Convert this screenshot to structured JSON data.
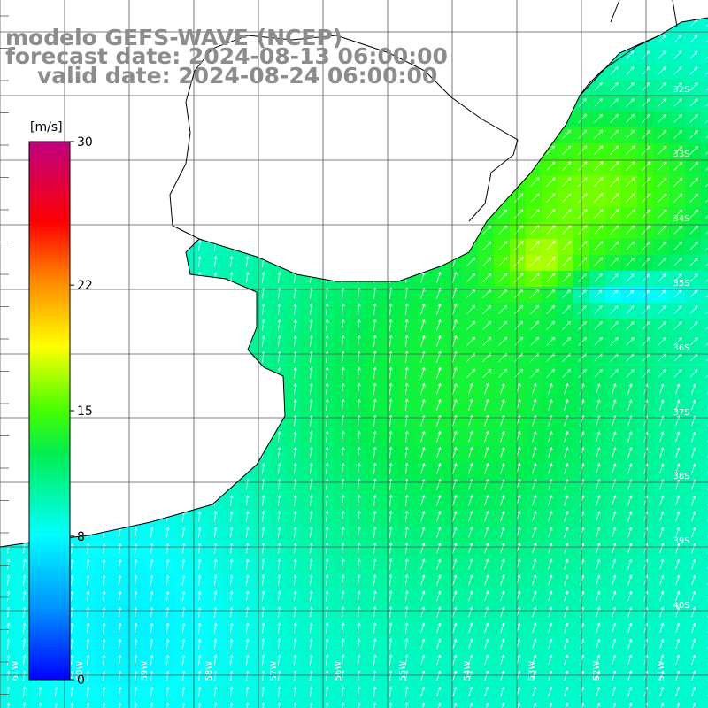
{
  "header": {
    "title": "modelo GEFS-WAVE (NCEP)",
    "forecast_line": "forecast date: 2024-08-13 06:00:00",
    "valid_line": "valid date: 2024-08-24 06:00:00"
  },
  "colorbar": {
    "unit": "[m/s]",
    "min": 0,
    "max": 30,
    "ticks": [
      "30",
      "22",
      "15",
      "8",
      "0"
    ]
  },
  "latitude_labels": [
    "32S",
    "33S",
    "34S",
    "35S",
    "36S",
    "37S",
    "38S",
    "39S",
    "40S"
  ],
  "longitude_labels": [
    "61W",
    "60W",
    "59W",
    "58W",
    "57W",
    "56W",
    "55W",
    "54W",
    "53W",
    "52W",
    "51W"
  ],
  "colors": {
    "land": "#ffffff",
    "coastline": "#000000",
    "grid": "#555555",
    "header_text": "#8c8c8c",
    "arrow": "#ffffff"
  }
}
